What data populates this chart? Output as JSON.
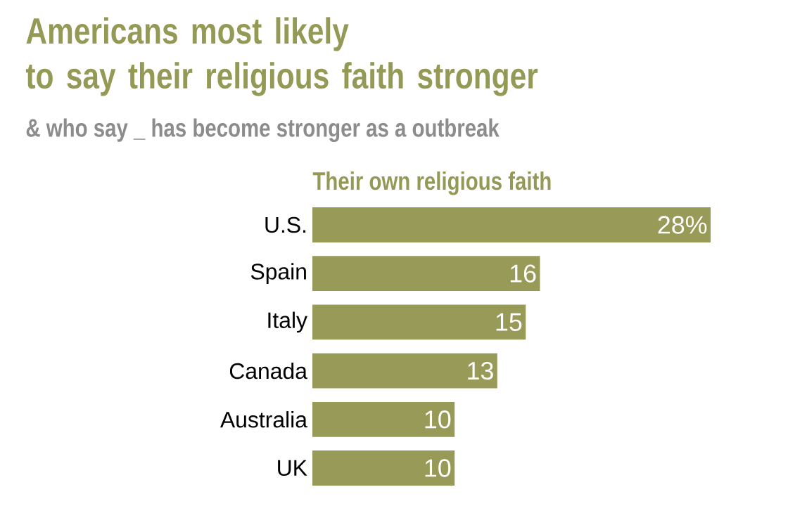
{
  "chart_data": {
    "type": "bar",
    "orientation": "horizontal",
    "title": "Americans most likely\nto say their religious faith stronger",
    "subtitle": "& who say _ has become stronger as a outbreak",
    "xlabel": "Their own religious faith",
    "categories": [
      "U.S.",
      "Spain",
      "Italy",
      "Canada",
      "Australia",
      "UK"
    ],
    "values": [
      28,
      16,
      15,
      13,
      10,
      10
    ],
    "value_labels": [
      "28%",
      "16",
      "15",
      "13",
      "10",
      "10"
    ],
    "color": "#989a58"
  }
}
